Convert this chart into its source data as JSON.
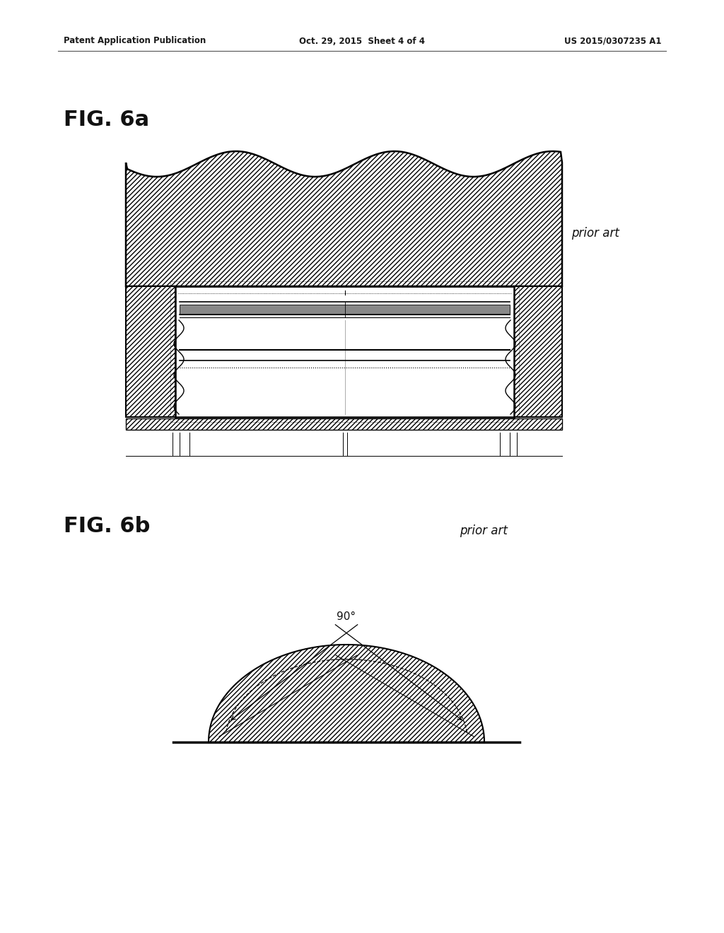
{
  "header_left": "Patent Application Publication",
  "header_center": "Oct. 29, 2015  Sheet 4 of 4",
  "header_right": "US 2015/0307235 A1",
  "fig6a_label": "FIG. 6a",
  "fig6b_label": "FIG. 6b",
  "prior_art": "prior art",
  "angle_label": "90°",
  "bg_color": "#ffffff"
}
